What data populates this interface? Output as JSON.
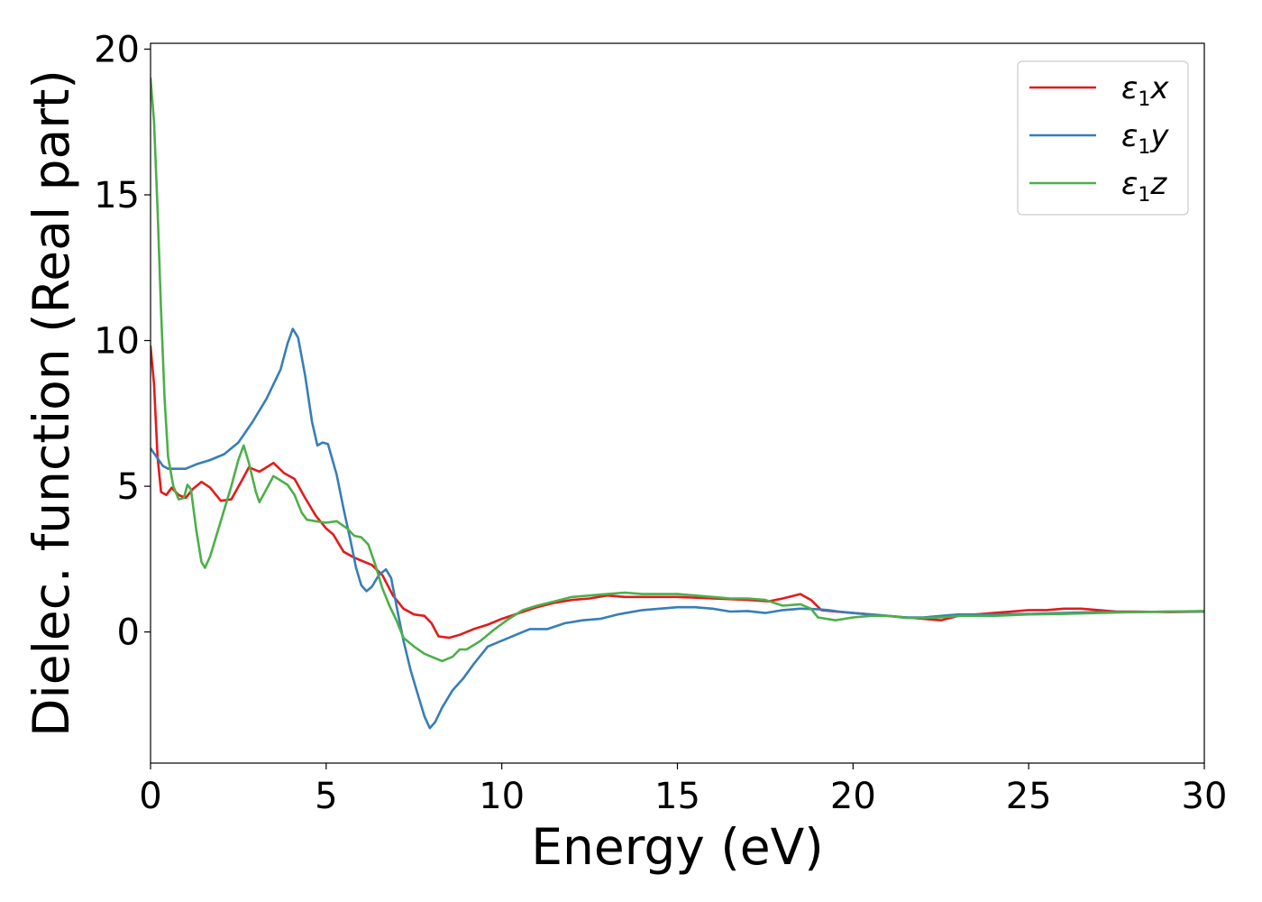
{
  "chart_data": {
    "type": "line",
    "title": "",
    "xlabel": "Energy (eV)",
    "ylabel": "Dielec. function (Real part)",
    "xlim": [
      0,
      30
    ],
    "ylim": [
      -4.5,
      20.2
    ],
    "xticks": [
      0,
      5,
      10,
      15,
      20,
      25,
      30
    ],
    "yticks": [
      0,
      5,
      10,
      15,
      20
    ],
    "grid": false,
    "legend_position": "top-right",
    "series": [
      {
        "name": "ε1x",
        "legend_main": "ε",
        "legend_sub": "1",
        "legend_suffix": "x",
        "color": "#e41a1c",
        "points": [
          [
            0,
            9.8
          ],
          [
            0.1,
            8.5
          ],
          [
            0.2,
            6.0
          ],
          [
            0.3,
            4.8
          ],
          [
            0.45,
            4.7
          ],
          [
            0.6,
            4.95
          ],
          [
            0.8,
            4.7
          ],
          [
            1.0,
            4.6
          ],
          [
            1.2,
            4.9
          ],
          [
            1.45,
            5.15
          ],
          [
            1.7,
            4.95
          ],
          [
            2.0,
            4.5
          ],
          [
            2.3,
            4.55
          ],
          [
            2.6,
            5.2
          ],
          [
            2.8,
            5.65
          ],
          [
            3.1,
            5.5
          ],
          [
            3.3,
            5.65
          ],
          [
            3.5,
            5.8
          ],
          [
            3.8,
            5.45
          ],
          [
            4.1,
            5.25
          ],
          [
            4.4,
            4.6
          ],
          [
            4.7,
            4.0
          ],
          [
            5.0,
            3.55
          ],
          [
            5.2,
            3.35
          ],
          [
            5.5,
            2.75
          ],
          [
            5.8,
            2.55
          ],
          [
            6.0,
            2.45
          ],
          [
            6.3,
            2.3
          ],
          [
            6.6,
            1.95
          ],
          [
            6.9,
            1.25
          ],
          [
            7.2,
            0.8
          ],
          [
            7.5,
            0.6
          ],
          [
            7.8,
            0.55
          ],
          [
            8.0,
            0.3
          ],
          [
            8.2,
            -0.15
          ],
          [
            8.5,
            -0.2
          ],
          [
            8.8,
            -0.1
          ],
          [
            9.2,
            0.1
          ],
          [
            9.6,
            0.25
          ],
          [
            10.0,
            0.45
          ],
          [
            10.5,
            0.65
          ],
          [
            11.0,
            0.85
          ],
          [
            11.5,
            1.0
          ],
          [
            12.0,
            1.1
          ],
          [
            12.5,
            1.15
          ],
          [
            13.0,
            1.25
          ],
          [
            13.5,
            1.2
          ],
          [
            14.0,
            1.2
          ],
          [
            15.0,
            1.2
          ],
          [
            16.0,
            1.15
          ],
          [
            17.0,
            1.1
          ],
          [
            17.6,
            1.05
          ],
          [
            18.0,
            1.15
          ],
          [
            18.5,
            1.3
          ],
          [
            18.8,
            1.1
          ],
          [
            19.1,
            0.75
          ],
          [
            19.5,
            0.7
          ],
          [
            20.0,
            0.65
          ],
          [
            20.5,
            0.6
          ],
          [
            21.0,
            0.55
          ],
          [
            21.5,
            0.5
          ],
          [
            22.0,
            0.45
          ],
          [
            22.5,
            0.4
          ],
          [
            23.0,
            0.55
          ],
          [
            23.5,
            0.6
          ],
          [
            24.0,
            0.65
          ],
          [
            24.5,
            0.7
          ],
          [
            25.0,
            0.75
          ],
          [
            25.5,
            0.75
          ],
          [
            26.0,
            0.8
          ],
          [
            26.5,
            0.8
          ],
          [
            27.0,
            0.75
          ],
          [
            27.5,
            0.7
          ],
          [
            28.0,
            0.7
          ],
          [
            29.0,
            0.68
          ],
          [
            30.0,
            0.7
          ]
        ]
      },
      {
        "name": "ε1y",
        "legend_main": "ε",
        "legend_sub": "1",
        "legend_suffix": "y",
        "color": "#377eb8",
        "points": [
          [
            0,
            6.3
          ],
          [
            0.15,
            6.05
          ],
          [
            0.35,
            5.7
          ],
          [
            0.5,
            5.6
          ],
          [
            0.8,
            5.6
          ],
          [
            1.0,
            5.6
          ],
          [
            1.3,
            5.75
          ],
          [
            1.7,
            5.9
          ],
          [
            2.1,
            6.1
          ],
          [
            2.5,
            6.5
          ],
          [
            2.9,
            7.2
          ],
          [
            3.3,
            8.0
          ],
          [
            3.7,
            9.0
          ],
          [
            3.9,
            9.9
          ],
          [
            4.05,
            10.4
          ],
          [
            4.2,
            10.1
          ],
          [
            4.4,
            8.8
          ],
          [
            4.6,
            7.2
          ],
          [
            4.75,
            6.4
          ],
          [
            4.9,
            6.5
          ],
          [
            5.05,
            6.45
          ],
          [
            5.3,
            5.4
          ],
          [
            5.5,
            4.2
          ],
          [
            5.7,
            3.1
          ],
          [
            5.85,
            2.2
          ],
          [
            6.0,
            1.6
          ],
          [
            6.15,
            1.4
          ],
          [
            6.3,
            1.55
          ],
          [
            6.5,
            1.95
          ],
          [
            6.7,
            2.15
          ],
          [
            6.85,
            1.85
          ],
          [
            7.0,
            0.9
          ],
          [
            7.2,
            -0.3
          ],
          [
            7.4,
            -1.3
          ],
          [
            7.6,
            -2.1
          ],
          [
            7.8,
            -2.9
          ],
          [
            7.95,
            -3.3
          ],
          [
            8.1,
            -3.1
          ],
          [
            8.3,
            -2.6
          ],
          [
            8.6,
            -2.0
          ],
          [
            8.9,
            -1.6
          ],
          [
            9.2,
            -1.1
          ],
          [
            9.6,
            -0.5
          ],
          [
            10.0,
            -0.3
          ],
          [
            10.4,
            -0.1
          ],
          [
            10.8,
            0.1
          ],
          [
            11.3,
            0.1
          ],
          [
            11.8,
            0.3
          ],
          [
            12.3,
            0.4
          ],
          [
            12.8,
            0.45
          ],
          [
            13.3,
            0.6
          ],
          [
            14.0,
            0.75
          ],
          [
            14.5,
            0.8
          ],
          [
            15.0,
            0.85
          ],
          [
            15.5,
            0.85
          ],
          [
            16.0,
            0.8
          ],
          [
            16.5,
            0.7
          ],
          [
            17.0,
            0.72
          ],
          [
            17.5,
            0.65
          ],
          [
            18.0,
            0.75
          ],
          [
            18.5,
            0.8
          ],
          [
            19.0,
            0.78
          ],
          [
            19.3,
            0.75
          ],
          [
            19.6,
            0.7
          ],
          [
            20.0,
            0.65
          ],
          [
            20.5,
            0.6
          ],
          [
            21.0,
            0.55
          ],
          [
            21.5,
            0.5
          ],
          [
            22.0,
            0.5
          ],
          [
            22.5,
            0.55
          ],
          [
            23.0,
            0.6
          ],
          [
            23.5,
            0.6
          ],
          [
            24.0,
            0.6
          ],
          [
            25.0,
            0.62
          ],
          [
            26.0,
            0.65
          ],
          [
            27.0,
            0.68
          ],
          [
            28.0,
            0.68
          ],
          [
            29.0,
            0.7
          ],
          [
            30.0,
            0.7
          ]
        ]
      },
      {
        "name": "ε1z",
        "legend_main": "ε",
        "legend_sub": "1",
        "legend_suffix": "z",
        "color": "#4daf4a",
        "points": [
          [
            0,
            19.0
          ],
          [
            0.1,
            17.5
          ],
          [
            0.2,
            14.5
          ],
          [
            0.3,
            11.0
          ],
          [
            0.4,
            8.0
          ],
          [
            0.5,
            6.0
          ],
          [
            0.65,
            5.0
          ],
          [
            0.8,
            4.55
          ],
          [
            0.95,
            4.6
          ],
          [
            1.05,
            5.05
          ],
          [
            1.15,
            4.9
          ],
          [
            1.3,
            3.5
          ],
          [
            1.45,
            2.4
          ],
          [
            1.55,
            2.2
          ],
          [
            1.7,
            2.6
          ],
          [
            1.9,
            3.4
          ],
          [
            2.1,
            4.2
          ],
          [
            2.3,
            5.0
          ],
          [
            2.5,
            5.9
          ],
          [
            2.65,
            6.4
          ],
          [
            2.8,
            5.8
          ],
          [
            3.0,
            4.8
          ],
          [
            3.1,
            4.45
          ],
          [
            3.3,
            4.9
          ],
          [
            3.5,
            5.35
          ],
          [
            3.7,
            5.2
          ],
          [
            3.9,
            5.05
          ],
          [
            4.1,
            4.7
          ],
          [
            4.3,
            4.1
          ],
          [
            4.45,
            3.85
          ],
          [
            4.7,
            3.8
          ],
          [
            5.0,
            3.75
          ],
          [
            5.3,
            3.8
          ],
          [
            5.6,
            3.55
          ],
          [
            5.8,
            3.3
          ],
          [
            6.0,
            3.25
          ],
          [
            6.2,
            3.0
          ],
          [
            6.4,
            2.3
          ],
          [
            6.6,
            1.5
          ],
          [
            6.8,
            0.9
          ],
          [
            7.0,
            0.4
          ],
          [
            7.2,
            -0.2
          ],
          [
            7.5,
            -0.5
          ],
          [
            7.8,
            -0.75
          ],
          [
            8.0,
            -0.85
          ],
          [
            8.3,
            -1.0
          ],
          [
            8.6,
            -0.85
          ],
          [
            8.8,
            -0.6
          ],
          [
            9.0,
            -0.6
          ],
          [
            9.4,
            -0.3
          ],
          [
            9.8,
            0.1
          ],
          [
            10.2,
            0.45
          ],
          [
            10.6,
            0.75
          ],
          [
            11.0,
            0.9
          ],
          [
            11.5,
            1.05
          ],
          [
            12.0,
            1.2
          ],
          [
            12.5,
            1.25
          ],
          [
            13.0,
            1.3
          ],
          [
            13.5,
            1.35
          ],
          [
            14.0,
            1.3
          ],
          [
            15.0,
            1.3
          ],
          [
            16.0,
            1.2
          ],
          [
            16.5,
            1.15
          ],
          [
            17.0,
            1.15
          ],
          [
            17.5,
            1.1
          ],
          [
            18.0,
            0.9
          ],
          [
            18.5,
            0.95
          ],
          [
            18.8,
            0.8
          ],
          [
            19.0,
            0.5
          ],
          [
            19.5,
            0.4
          ],
          [
            20.0,
            0.5
          ],
          [
            20.5,
            0.55
          ],
          [
            21.0,
            0.55
          ],
          [
            21.5,
            0.48
          ],
          [
            22.0,
            0.48
          ],
          [
            22.5,
            0.5
          ],
          [
            23.0,
            0.55
          ],
          [
            23.5,
            0.55
          ],
          [
            24.0,
            0.55
          ],
          [
            25.0,
            0.6
          ],
          [
            26.0,
            0.62
          ],
          [
            27.0,
            0.65
          ],
          [
            28.0,
            0.68
          ],
          [
            29.0,
            0.7
          ],
          [
            30.0,
            0.72
          ]
        ]
      }
    ]
  }
}
